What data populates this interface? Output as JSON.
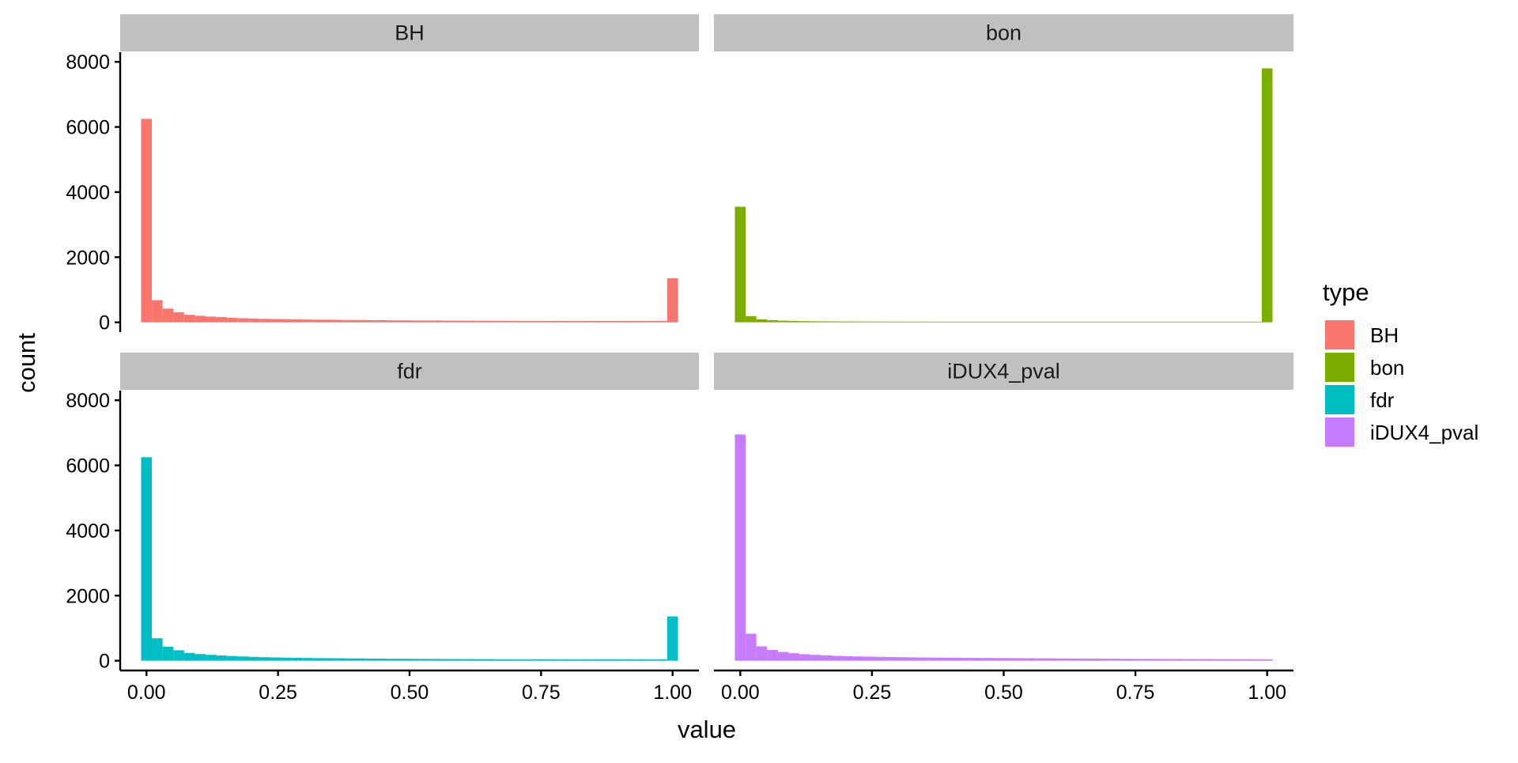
{
  "chart_data": {
    "type": "bar",
    "subtype": "faceted-histogram",
    "xlabel": "value",
    "ylabel": "count",
    "x_ticks": [
      0,
      0.25,
      0.5,
      0.75,
      1
    ],
    "x_tick_labels": [
      "0.00",
      "0.25",
      "0.50",
      "0.75",
      "1.00"
    ],
    "xlim": [
      -0.05,
      1.05
    ],
    "y_ticks": [
      0,
      2000,
      4000,
      6000,
      8000
    ],
    "y_tick_labels": [
      "0",
      "2000",
      "4000",
      "6000",
      "8000"
    ],
    "ylim": [
      -300,
      8200
    ],
    "bin_width": 0.0204,
    "grid": false,
    "facet_layout": "2x2",
    "legend": {
      "title": "type",
      "position": "right",
      "entries": [
        {
          "label": "BH",
          "color": "#F8766D"
        },
        {
          "label": "bon",
          "color": "#7CAE00"
        },
        {
          "label": "fdr",
          "color": "#00BFC4"
        },
        {
          "label": "iDUX4_pval",
          "color": "#C77CFF"
        }
      ]
    },
    "facets": [
      {
        "name": "BH",
        "color": "#F8766D",
        "values": [
          6250,
          680,
          420,
          310,
          230,
          200,
          175,
          160,
          140,
          125,
          115,
          105,
          100,
          95,
          90,
          85,
          80,
          80,
          75,
          70,
          70,
          65,
          65,
          60,
          60,
          58,
          55,
          55,
          52,
          50,
          50,
          48,
          46,
          45,
          44,
          43,
          42,
          41,
          40,
          40,
          40,
          40,
          40,
          40,
          40,
          40,
          40,
          40,
          40,
          1350
        ]
      },
      {
        "name": "bon",
        "color": "#7CAE00",
        "values": [
          3550,
          190,
          90,
          65,
          50,
          42,
          36,
          32,
          30,
          28,
          26,
          25,
          24,
          23,
          22,
          22,
          21,
          21,
          20,
          20,
          20,
          20,
          20,
          20,
          20,
          20,
          20,
          20,
          20,
          20,
          20,
          20,
          20,
          20,
          20,
          20,
          20,
          20,
          20,
          20,
          20,
          20,
          20,
          20,
          20,
          20,
          20,
          20,
          20,
          7800
        ]
      },
      {
        "name": "fdr",
        "color": "#00BFC4",
        "values": [
          6250,
          690,
          430,
          320,
          240,
          205,
          180,
          160,
          145,
          130,
          118,
          108,
          100,
          95,
          90,
          85,
          80,
          78,
          75,
          72,
          70,
          66,
          64,
          60,
          60,
          58,
          55,
          54,
          52,
          50,
          50,
          48,
          46,
          45,
          44,
          43,
          42,
          41,
          40,
          40,
          40,
          40,
          40,
          40,
          40,
          40,
          40,
          40,
          40,
          1360
        ]
      },
      {
        "name": "iDUX4_pval",
        "color": "#C77CFF",
        "values": [
          6950,
          830,
          440,
          330,
          270,
          230,
          200,
          180,
          165,
          150,
          140,
          132,
          125,
          118,
          112,
          108,
          104,
          100,
          97,
          94,
          91,
          88,
          86,
          84,
          82,
          80,
          78,
          76,
          74,
          72,
          70,
          68,
          66,
          64,
          62,
          60,
          58,
          56,
          55,
          54,
          53,
          52,
          51,
          50,
          49,
          48,
          47,
          46,
          45,
          44
        ]
      }
    ]
  }
}
